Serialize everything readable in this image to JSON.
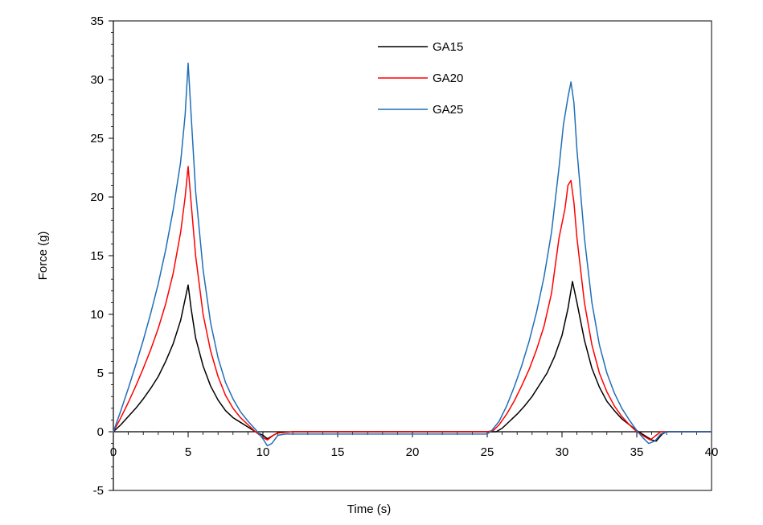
{
  "chart_data": {
    "type": "line",
    "title": "",
    "xlabel": "Time (s)",
    "ylabel": "Force (g)",
    "xlim": [
      0,
      40
    ],
    "ylim": [
      -5,
      35
    ],
    "x_ticks": [
      0,
      5,
      10,
      15,
      20,
      25,
      30,
      35,
      40
    ],
    "y_ticks": [
      -5,
      0,
      5,
      10,
      15,
      20,
      25,
      30,
      35
    ],
    "grid": false,
    "legend_position": "top-center",
    "series": [
      {
        "name": "GA15",
        "color": "#000000",
        "points": [
          [
            0,
            0
          ],
          [
            0.5,
            0.6
          ],
          [
            1,
            1.3
          ],
          [
            1.5,
            2.0
          ],
          [
            2,
            2.8
          ],
          [
            2.5,
            3.7
          ],
          [
            3,
            4.7
          ],
          [
            3.5,
            6.0
          ],
          [
            4,
            7.5
          ],
          [
            4.5,
            9.5
          ],
          [
            5,
            12.5
          ],
          [
            5.2,
            10.5
          ],
          [
            5.5,
            8.0
          ],
          [
            6,
            5.6
          ],
          [
            6.5,
            3.9
          ],
          [
            7,
            2.7
          ],
          [
            7.5,
            1.8
          ],
          [
            8,
            1.2
          ],
          [
            8.5,
            0.8
          ],
          [
            9,
            0.4
          ],
          [
            9.5,
            0.0
          ],
          [
            10,
            -0.3
          ],
          [
            10.3,
            -0.6
          ],
          [
            10.7,
            -0.3
          ],
          [
            11,
            -0.1
          ],
          [
            12,
            0.0
          ],
          [
            15,
            0.0
          ],
          [
            20,
            0.0
          ],
          [
            25,
            0.0
          ],
          [
            25.6,
            0.0
          ],
          [
            26,
            0.3
          ],
          [
            26.5,
            0.9
          ],
          [
            27,
            1.5
          ],
          [
            27.5,
            2.2
          ],
          [
            28,
            3.0
          ],
          [
            28.5,
            4.0
          ],
          [
            29,
            5.0
          ],
          [
            29.5,
            6.4
          ],
          [
            30,
            8.2
          ],
          [
            30.4,
            10.5
          ],
          [
            30.7,
            12.8
          ],
          [
            31,
            11.0
          ],
          [
            31.5,
            7.8
          ],
          [
            32,
            5.4
          ],
          [
            32.5,
            3.8
          ],
          [
            33,
            2.6
          ],
          [
            33.5,
            1.8
          ],
          [
            34,
            1.1
          ],
          [
            34.5,
            0.6
          ],
          [
            35,
            0.1
          ],
          [
            35.5,
            -0.3
          ],
          [
            36,
            -0.7
          ],
          [
            36.3,
            -0.8
          ],
          [
            36.7,
            -0.2
          ],
          [
            37,
            0.0
          ],
          [
            40,
            0.0
          ]
        ]
      },
      {
        "name": "GA20",
        "color": "#ff0000",
        "points": [
          [
            0,
            0
          ],
          [
            0.5,
            1.2
          ],
          [
            1,
            2.5
          ],
          [
            1.5,
            3.9
          ],
          [
            2,
            5.4
          ],
          [
            2.5,
            7.0
          ],
          [
            3,
            8.8
          ],
          [
            3.5,
            10.9
          ],
          [
            4,
            13.5
          ],
          [
            4.5,
            17.0
          ],
          [
            4.8,
            20.0
          ],
          [
            5,
            22.6
          ],
          [
            5.2,
            19.5
          ],
          [
            5.5,
            15.0
          ],
          [
            6,
            10.0
          ],
          [
            6.5,
            6.9
          ],
          [
            7,
            4.7
          ],
          [
            7.5,
            3.1
          ],
          [
            8,
            2.0
          ],
          [
            8.5,
            1.2
          ],
          [
            9,
            0.6
          ],
          [
            9.5,
            0.0
          ],
          [
            10,
            -0.5
          ],
          [
            10.3,
            -0.7
          ],
          [
            10.7,
            -0.3
          ],
          [
            11,
            -0.1
          ],
          [
            12,
            0.0
          ],
          [
            15,
            0.0
          ],
          [
            20,
            0.0
          ],
          [
            25,
            0.0
          ],
          [
            25.4,
            0.1
          ],
          [
            25.8,
            0.6
          ],
          [
            26.3,
            1.5
          ],
          [
            26.8,
            2.6
          ],
          [
            27.3,
            3.9
          ],
          [
            27.8,
            5.3
          ],
          [
            28.3,
            7.0
          ],
          [
            28.8,
            9.0
          ],
          [
            29.3,
            11.8
          ],
          [
            29.8,
            16.5
          ],
          [
            30.2,
            19.0
          ],
          [
            30.4,
            21.0
          ],
          [
            30.6,
            21.4
          ],
          [
            30.8,
            19.5
          ],
          [
            31,
            16.5
          ],
          [
            31.5,
            11.0
          ],
          [
            32,
            7.4
          ],
          [
            32.5,
            5.0
          ],
          [
            33,
            3.4
          ],
          [
            33.5,
            2.2
          ],
          [
            34,
            1.3
          ],
          [
            34.5,
            0.6
          ],
          [
            35,
            0.0
          ],
          [
            35.5,
            -0.4
          ],
          [
            35.9,
            -0.7
          ],
          [
            36.3,
            -0.3
          ],
          [
            36.6,
            0.0
          ],
          [
            40,
            0.0
          ]
        ]
      },
      {
        "name": "GA25",
        "color": "#1f6fb8",
        "points": [
          [
            0,
            0
          ],
          [
            0.5,
            1.8
          ],
          [
            1,
            3.7
          ],
          [
            1.5,
            5.7
          ],
          [
            2,
            7.8
          ],
          [
            2.5,
            10.1
          ],
          [
            3,
            12.6
          ],
          [
            3.5,
            15.5
          ],
          [
            4,
            18.9
          ],
          [
            4.5,
            23.0
          ],
          [
            4.8,
            27.0
          ],
          [
            5,
            31.4
          ],
          [
            5.2,
            27.0
          ],
          [
            5.5,
            20.5
          ],
          [
            6,
            13.8
          ],
          [
            6.5,
            9.3
          ],
          [
            7,
            6.3
          ],
          [
            7.5,
            4.2
          ],
          [
            8,
            2.8
          ],
          [
            8.5,
            1.7
          ],
          [
            9,
            0.9
          ],
          [
            9.5,
            0.2
          ],
          [
            10,
            -0.6
          ],
          [
            10.3,
            -1.2
          ],
          [
            10.6,
            -1.0
          ],
          [
            11,
            -0.3
          ],
          [
            11.5,
            -0.2
          ],
          [
            15,
            -0.2
          ],
          [
            20,
            -0.2
          ],
          [
            25,
            -0.2
          ],
          [
            25.3,
            0.1
          ],
          [
            25.8,
            0.9
          ],
          [
            26.3,
            2.2
          ],
          [
            26.8,
            3.8
          ],
          [
            27.3,
            5.6
          ],
          [
            27.8,
            7.7
          ],
          [
            28.3,
            10.2
          ],
          [
            28.8,
            13.2
          ],
          [
            29.3,
            17.0
          ],
          [
            29.8,
            22.5
          ],
          [
            30.1,
            26.2
          ],
          [
            30.4,
            28.5
          ],
          [
            30.6,
            29.8
          ],
          [
            30.8,
            28.0
          ],
          [
            31,
            24.0
          ],
          [
            31.5,
            16.5
          ],
          [
            32,
            11.0
          ],
          [
            32.5,
            7.4
          ],
          [
            33,
            5.0
          ],
          [
            33.5,
            3.3
          ],
          [
            34,
            2.0
          ],
          [
            34.5,
            1.0
          ],
          [
            35,
            0.1
          ],
          [
            35.4,
            -0.5
          ],
          [
            35.8,
            -1.0
          ],
          [
            36.2,
            -0.8
          ],
          [
            36.6,
            -0.2
          ],
          [
            37,
            0.0
          ],
          [
            40,
            0.0
          ]
        ]
      }
    ]
  }
}
